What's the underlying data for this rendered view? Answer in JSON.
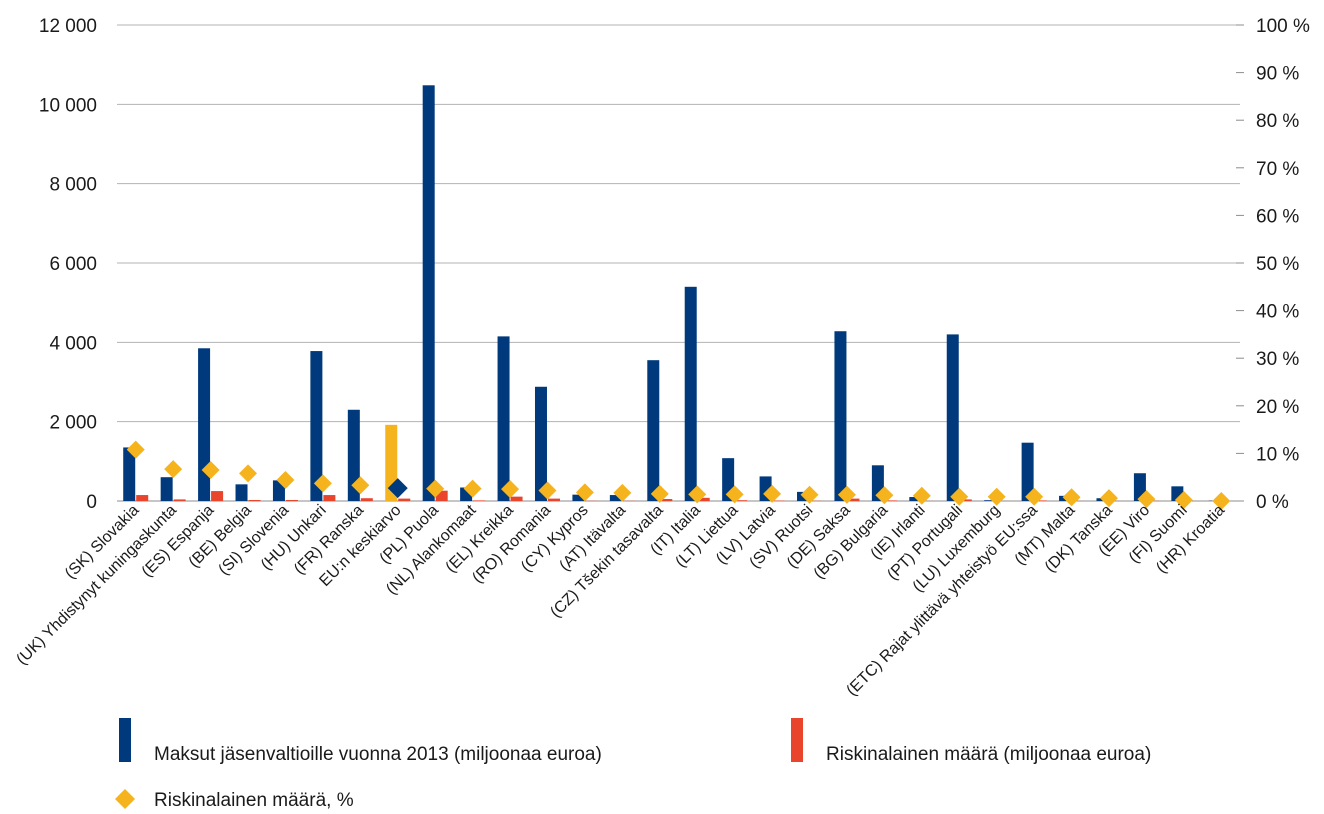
{
  "chart_data": {
    "type": "bar",
    "title": "",
    "xlabel": "",
    "ylabel": "",
    "y_left": {
      "ylim": [
        0,
        12000
      ],
      "ticks": [
        0,
        2000,
        4000,
        6000,
        8000,
        10000,
        12000
      ],
      "tick_labels": [
        "0",
        "2 000",
        "4 000",
        "6 000",
        "8 000",
        "10 000",
        "12 000"
      ]
    },
    "y_right": {
      "ylim": [
        0,
        100
      ],
      "ticks": [
        0,
        10,
        20,
        30,
        40,
        50,
        60,
        70,
        80,
        90,
        100
      ],
      "tick_labels": [
        "0 %",
        "10 %",
        "20 %",
        "30 %",
        "40 %",
        "50 %",
        "60 %",
        "70 %",
        "80 %",
        "90 %",
        "100 %"
      ]
    },
    "grid": "horizontal",
    "legend_placement": "bottom",
    "colors": {
      "payments": "#003a7d",
      "at_risk": "#e8452c",
      "percent": "#f5b41e",
      "average_marker": "#003a7d"
    },
    "average_category": "EU:n keskiarvo",
    "categories": [
      "(SK) Slovakia",
      "(UK) Yhdistynyt kuningaskunta",
      "(ES) Espanja",
      "(BE) Belgia",
      "(SI) Slovenia",
      "(HU) Unkari",
      "(FR) Ranska",
      "EU:n keskiarvo",
      "(PL) Puola",
      "(NL) Alankomaat",
      "(EL) Kreikka",
      "(RO) Romania",
      "(CY) Kypros",
      "(AT) Itävalta",
      "(CZ) Tšekin tasavalta",
      "(IT) Italia",
      "(LT) Liettua",
      "(LV) Latvia",
      "(SV) Ruotsi",
      "(DE) Saksa",
      "(BG) Bulgaria",
      "(IE) Irlanti",
      "(PT) Portugali",
      "(LU) Luxemburg",
      "(ETC) Rajat ylittävä yhteistyö EU:ssa",
      "(MT) Malta",
      "(DK) Tanska",
      "(EE) Viro",
      "(FI) Suomi",
      "(HR) Kroatia"
    ],
    "series": [
      {
        "name": "Maksut jäsenvaltioille vuonna 2013 (miljoonaa euroa)",
        "axis": "left",
        "kind": "bar",
        "values": [
          1350,
          600,
          3850,
          420,
          520,
          3780,
          2300,
          1920,
          10480,
          340,
          4150,
          2880,
          160,
          150,
          3550,
          5400,
          1080,
          620,
          230,
          4280,
          900,
          100,
          4200,
          20,
          1470,
          130,
          70,
          700,
          370,
          10
        ]
      },
      {
        "name": "Riskinalainen määrä (miljoonaa euroa)",
        "axis": "left",
        "kind": "bar",
        "values": [
          150,
          40,
          250,
          25,
          25,
          150,
          70,
          60,
          260,
          15,
          110,
          60,
          5,
          5,
          50,
          80,
          20,
          10,
          5,
          60,
          15,
          2,
          40,
          1,
          15,
          2,
          1,
          5,
          2,
          0
        ]
      },
      {
        "name": "Riskinalainen määrä, %",
        "axis": "right",
        "kind": "marker",
        "values": [
          10.8,
          6.7,
          6.5,
          5.8,
          4.4,
          3.7,
          3.3,
          2.7,
          2.6,
          2.6,
          2.5,
          2.2,
          1.8,
          1.7,
          1.5,
          1.4,
          1.4,
          1.5,
          1.3,
          1.3,
          1.2,
          1.1,
          0.9,
          0.9,
          0.9,
          0.8,
          0.6,
          0.4,
          0.2,
          0.0
        ]
      }
    ]
  }
}
